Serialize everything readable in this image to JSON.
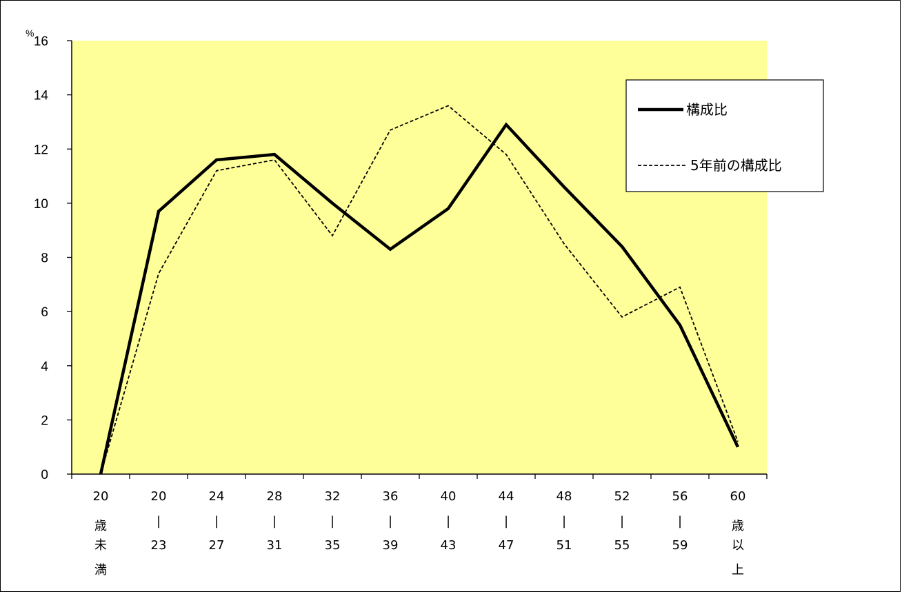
{
  "chart_data": {
    "type": "line",
    "y_unit": "%",
    "ylim": [
      0,
      16
    ],
    "yticks": [
      0,
      2,
      4,
      6,
      8,
      10,
      12,
      14,
      16
    ],
    "plot_background": "#FFFF99",
    "categories": [
      [
        "20",
        "歳",
        "未",
        "満"
      ],
      [
        "20",
        "|",
        "23"
      ],
      [
        "24",
        "|",
        "27"
      ],
      [
        "28",
        "|",
        "31"
      ],
      [
        "32",
        "|",
        "35"
      ],
      [
        "36",
        "|",
        "39"
      ],
      [
        "40",
        "|",
        "43"
      ],
      [
        "44",
        "|",
        "47"
      ],
      [
        "48",
        "|",
        "51"
      ],
      [
        "52",
        "|",
        "55"
      ],
      [
        "56",
        "|",
        "59"
      ],
      [
        "60",
        "歳",
        "以",
        "上"
      ]
    ],
    "series": [
      {
        "name": "構成比",
        "style": "solid",
        "color": "#000000",
        "values": [
          0.0,
          9.7,
          11.6,
          11.8,
          10.0,
          8.3,
          9.8,
          12.9,
          10.6,
          8.4,
          5.5,
          1.0
        ]
      },
      {
        "name": "5年前の構成比",
        "style": "dashed",
        "color": "#000000",
        "values": [
          0.0,
          7.4,
          11.2,
          11.6,
          8.8,
          12.7,
          13.6,
          11.8,
          8.5,
          5.8,
          6.9,
          1.2
        ]
      }
    ],
    "legend_position": "top-right",
    "grid": false
  }
}
